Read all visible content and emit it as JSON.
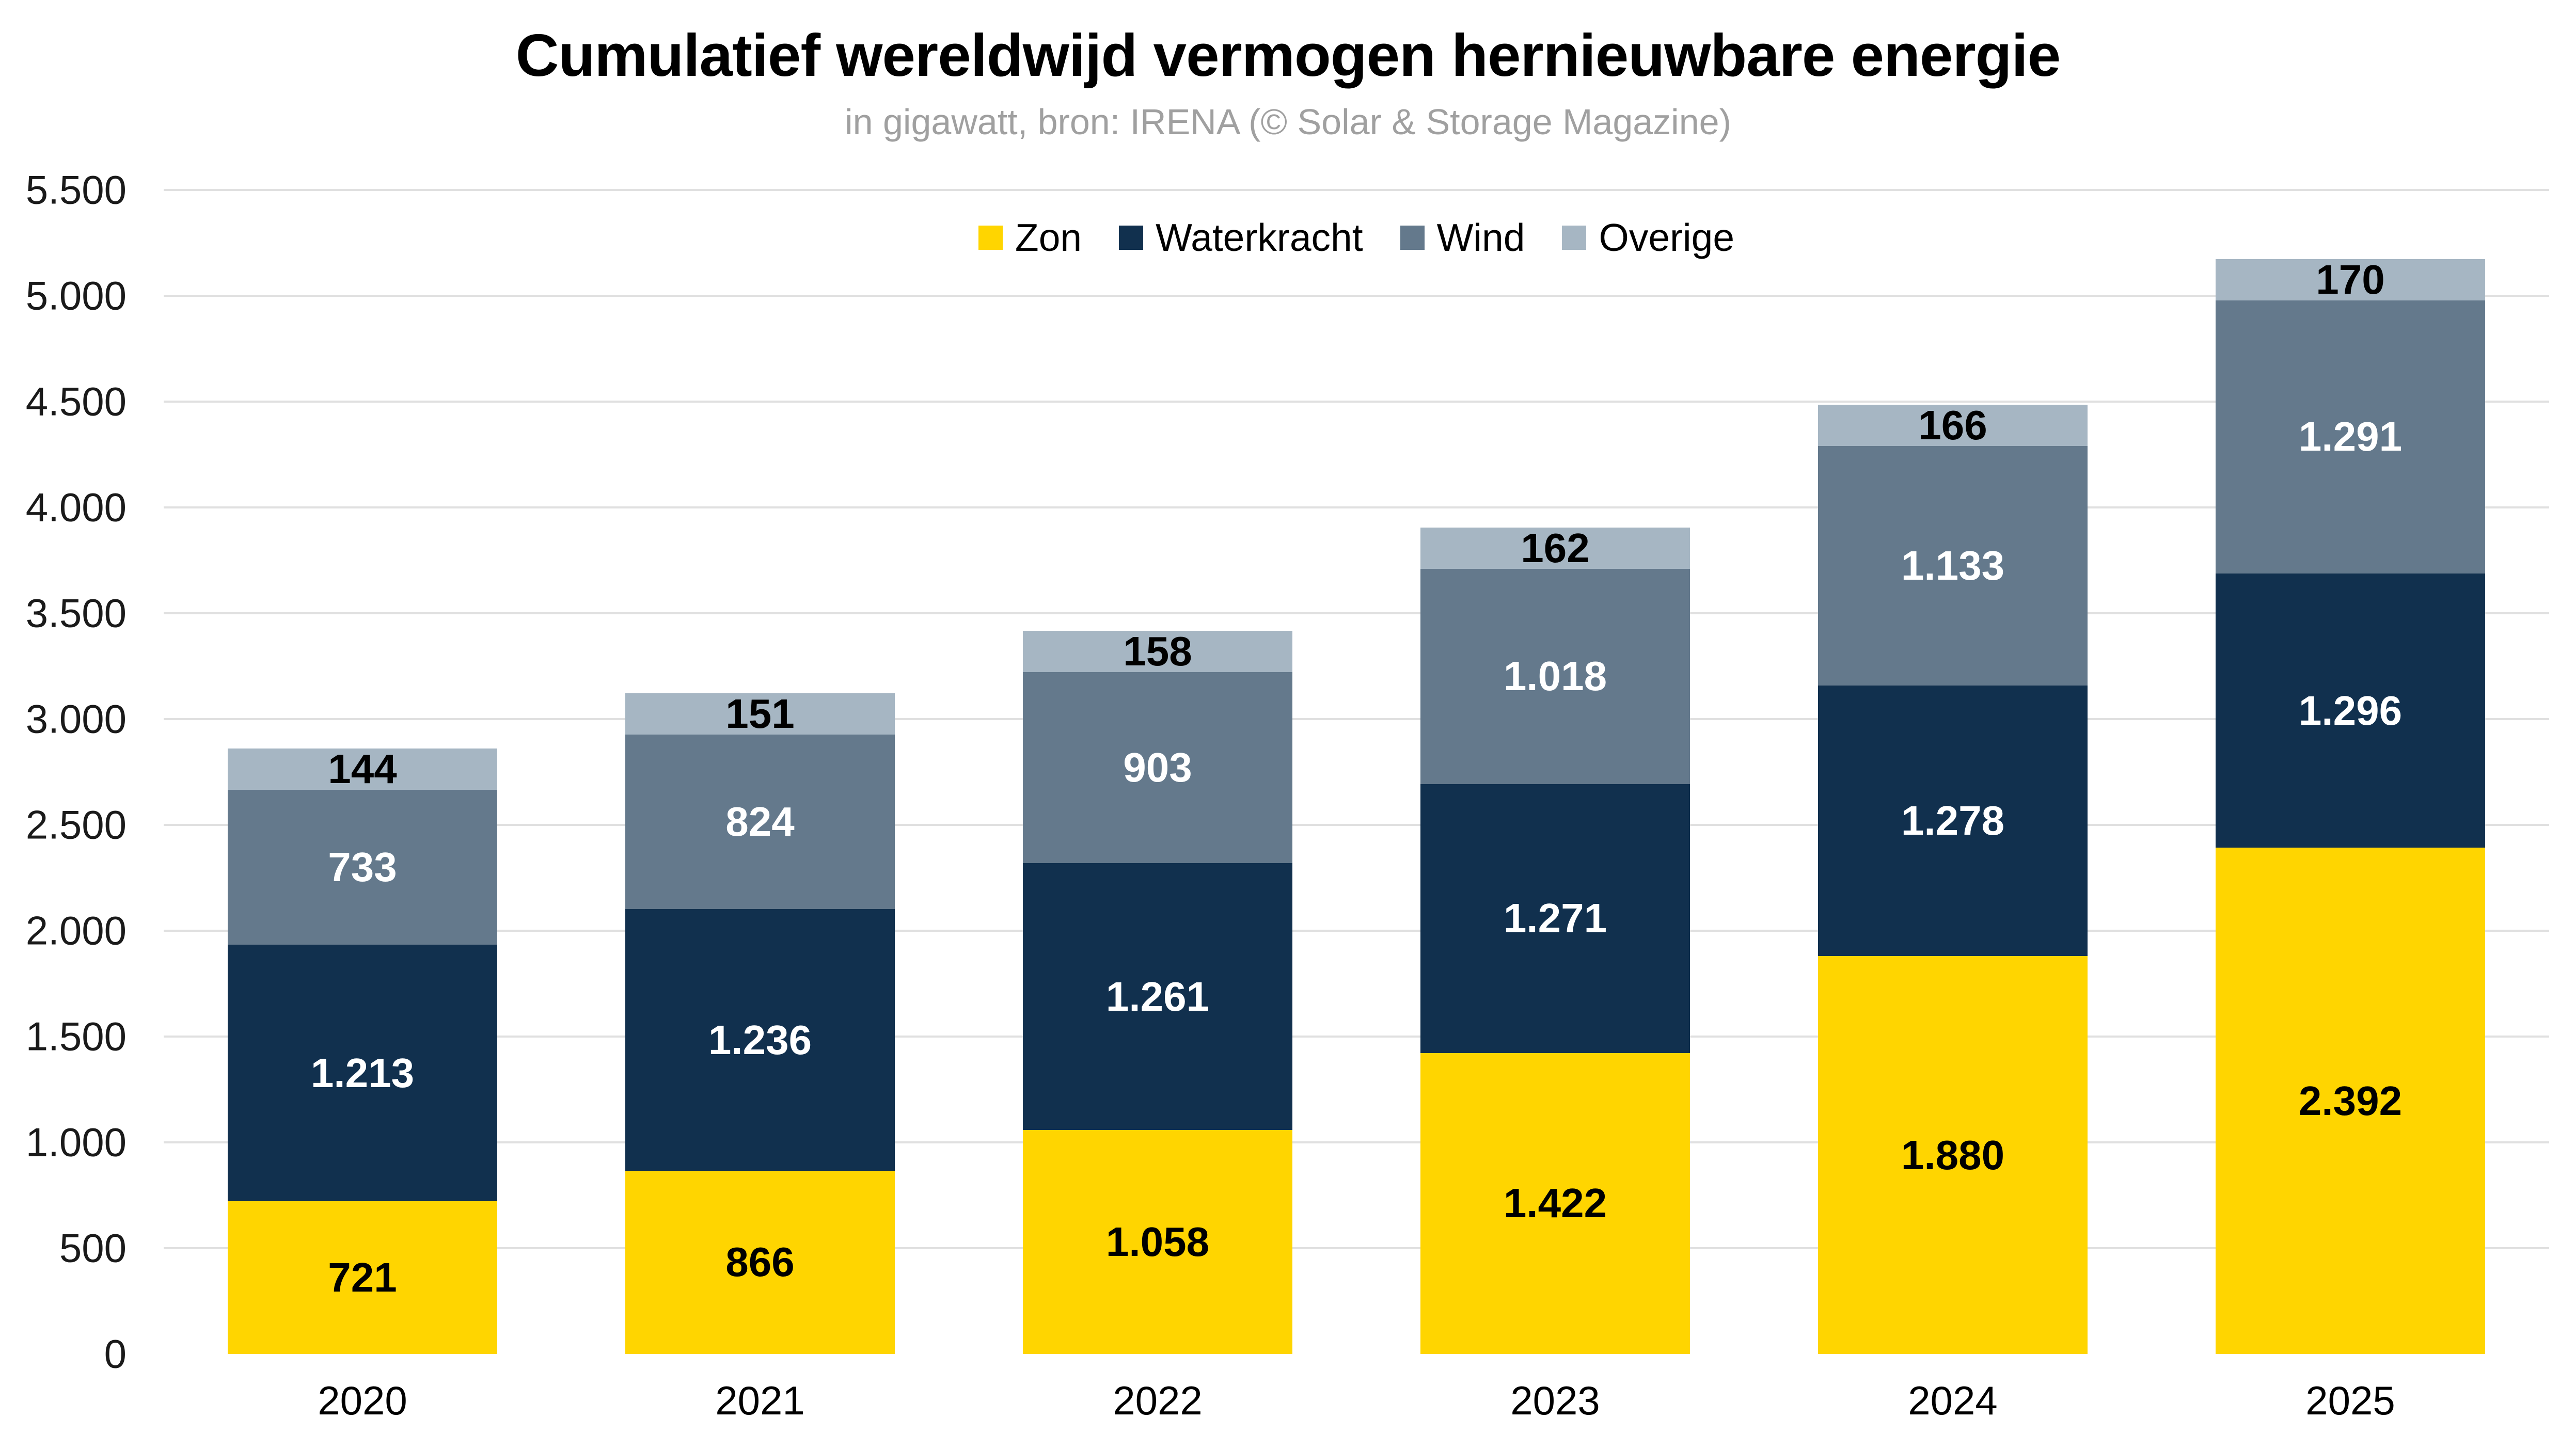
{
  "title": "Cumulatief wereldwijd vermogen hernieuwbare energie",
  "subtitle": "in gigawatt, bron: IRENA (© Solar & Storage Magazine)",
  "chart_data": {
    "type": "bar",
    "stacked": true,
    "title": "Cumulatief wereldwijd vermogen hernieuwbare energie",
    "subtitle": "in gigawatt, bron: IRENA (© Solar & Storage Magazine)",
    "unit": "gigawatt",
    "source": "IRENA (© Solar & Storage Magazine)",
    "categories": [
      "2020",
      "2021",
      "2022",
      "2023",
      "2024",
      "2025"
    ],
    "series": [
      {
        "name": "Zon",
        "color": "#ffd500",
        "label_color": "#000000",
        "values": [
          721,
          866,
          1058,
          1422,
          1880,
          2392
        ],
        "labels": [
          "721",
          "866",
          "1.058",
          "1.422",
          "1.880",
          "2.392"
        ]
      },
      {
        "name": "Waterkracht",
        "color": "#11304e",
        "label_color": "#ffffff",
        "values": [
          1213,
          1236,
          1261,
          1271,
          1278,
          1296
        ],
        "labels": [
          "1.213",
          "1.236",
          "1.261",
          "1.271",
          "1.278",
          "1.296"
        ]
      },
      {
        "name": "Wind",
        "color": "#64798c",
        "label_color": "#ffffff",
        "values": [
          733,
          824,
          903,
          1018,
          1133,
          1291
        ],
        "labels": [
          "733",
          "824",
          "903",
          "1.018",
          "1.133",
          "1.291"
        ]
      },
      {
        "name": "Overige",
        "color": "#a6b6c3",
        "label_color": "#000000",
        "values": [
          144,
          151,
          158,
          162,
          166,
          170
        ],
        "labels": [
          "144",
          "151",
          "158",
          "162",
          "166",
          "170"
        ]
      }
    ],
    "totals": [
      2811,
      3077,
      3380,
      3873,
      4457,
      5149
    ],
    "ylim": [
      0,
      5500
    ],
    "ytick_step": 500,
    "ytick_labels": [
      "0",
      "500",
      "1.000",
      "1.500",
      "2.000",
      "2.500",
      "3.000",
      "3.500",
      "4.000",
      "4.500",
      "5.000",
      "5.500"
    ],
    "grid": true,
    "grid_color": "#e0e0e0",
    "legend_position": "top",
    "legend": [
      "Zon",
      "Waterkracht",
      "Wind",
      "Overige"
    ]
  }
}
